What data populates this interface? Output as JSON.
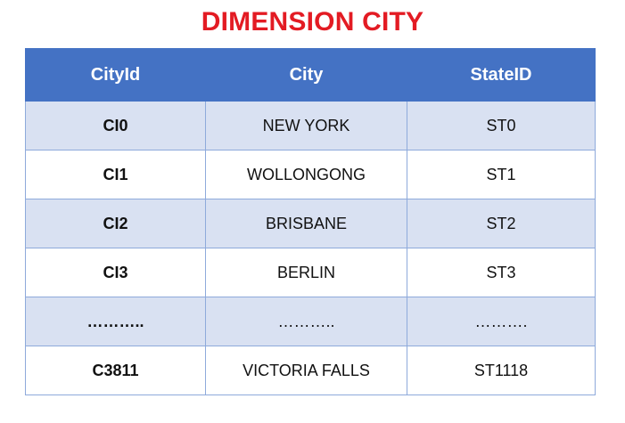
{
  "title": "DIMENSION CITY",
  "table": {
    "headers": [
      "CityId",
      "City",
      "StateID"
    ],
    "rows": [
      [
        "CI0",
        "NEW YORK",
        "ST0"
      ],
      [
        "CI1",
        "WOLLONGONG",
        "ST1"
      ],
      [
        "CI2",
        "BRISBANE",
        "ST2"
      ],
      [
        "CI3",
        "BERLIN",
        "ST3"
      ],
      [
        "………..",
        "………..",
        "………."
      ],
      [
        "C3811",
        "VICTORIA FALLS",
        "ST1118"
      ]
    ]
  },
  "colors": {
    "title": "#e31b23",
    "header_bg": "#4472c4",
    "band_bg": "#d9e1f2",
    "border": "#8eaadb"
  }
}
